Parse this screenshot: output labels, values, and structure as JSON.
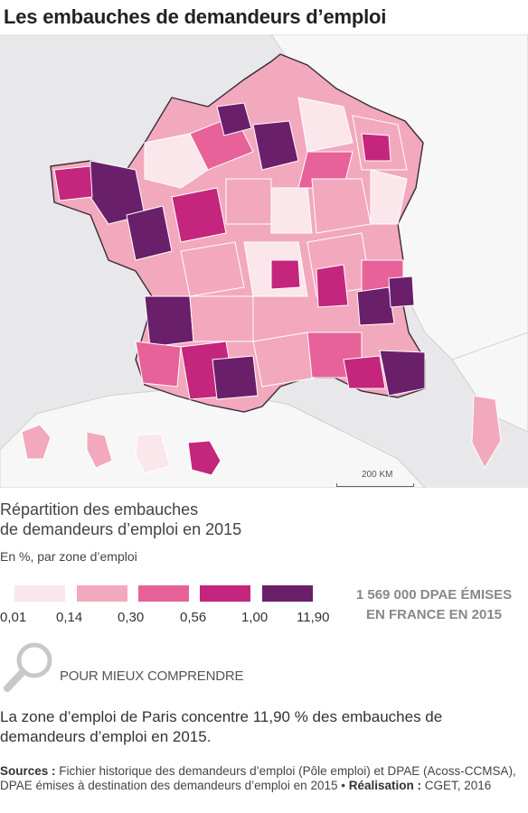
{
  "title": "Les embauches de demandeurs d’emploi",
  "map": {
    "scale_label": "200 KM"
  },
  "legend": {
    "title_line1": "Répartition des embauches",
    "title_line2": "de demandeurs d’emploi en 2015",
    "unit": "En %, par zone d’emploi",
    "classes": [
      {
        "min": 0.01,
        "max": 0.14,
        "color": "#fbe6ec"
      },
      {
        "min": 0.14,
        "max": 0.3,
        "color": "#f2a9bd"
      },
      {
        "min": 0.3,
        "max": 0.56,
        "color": "#e8629a"
      },
      {
        "min": 0.56,
        "max": 1.0,
        "color": "#c4257d"
      },
      {
        "min": 1.0,
        "max": 11.9,
        "color": "#6a1f6b"
      }
    ],
    "tick_labels": [
      "0,01",
      "0,14",
      "0,30",
      "0,56",
      "1,00",
      "11,90"
    ]
  },
  "total": {
    "line1": "1 569 000 DPAE ÉMISES",
    "line2": "EN FRANCE EN 2015"
  },
  "more_info": "POUR MIEUX COMPRENDRE",
  "note": "La zone d’emploi de Paris concentre 11,90 % des embauches de demandeurs d’emploi en 2015.",
  "sources": {
    "label": "Sources :",
    "text": " Fichier historique des demandeurs d’emploi (Pôle emploi) et DPAE (Acoss-CCMSA), DPAE émises à destination des demandeurs d’emploi en 2015 ",
    "credit_label": "Réalisation :",
    "credit": " CGET, 2016"
  },
  "colors": {
    "sea": "#e8e8ea",
    "land_outside": "#f7f7f7",
    "border": "#ffffff",
    "region_border": "#3a2a3a"
  }
}
